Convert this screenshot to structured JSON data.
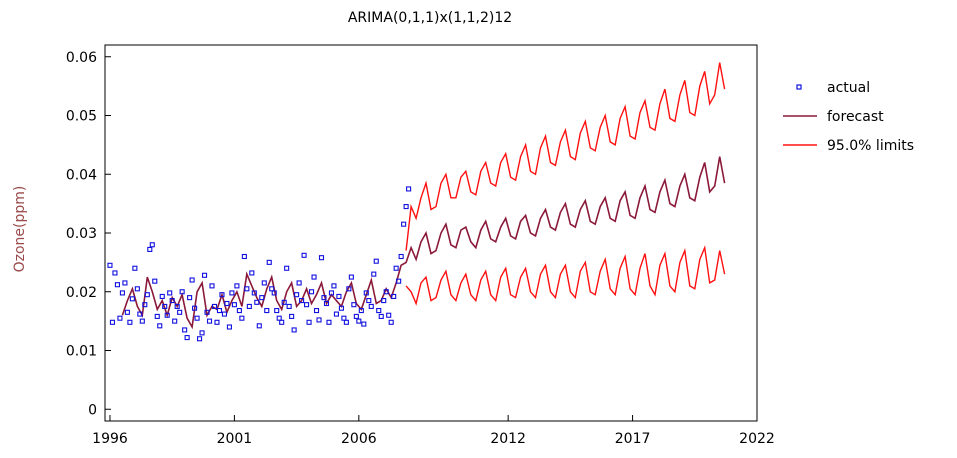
{
  "chart_data": {
    "type": "line",
    "title": "ARIMA(0,1,1)x(1,1,2)12",
    "xlabel": "",
    "ylabel": "Ozone(ppm)",
    "xlim": [
      1995.8,
      2022
    ],
    "ylim": [
      -0.002,
      0.062
    ],
    "xticks": [
      1996,
      2001,
      2006,
      2012,
      2017,
      2022
    ],
    "yticks": [
      0,
      0.01,
      0.02,
      0.03,
      0.04,
      0.05,
      0.06
    ],
    "ytick_labels": [
      "0",
      "0.01",
      "0.02",
      "0.03",
      "0.04",
      "0.05",
      "0.06"
    ],
    "grid": false,
    "legend_position": "right",
    "colors": {
      "actual": "#1010e0",
      "forecast": "#8b1a3a",
      "limits": "#ff1010"
    },
    "series": [
      {
        "name": "actual",
        "marker": "square",
        "x": [
          1996.0,
          1996.1,
          1996.2,
          1996.3,
          1996.4,
          1996.5,
          1996.6,
          1996.7,
          1996.8,
          1996.9,
          1997.0,
          1997.1,
          1997.2,
          1997.3,
          1997.4,
          1997.5,
          1997.6,
          1997.7,
          1997.8,
          1997.9,
          1998.0,
          1998.1,
          1998.2,
          1998.3,
          1998.4,
          1998.5,
          1998.6,
          1998.7,
          1998.8,
          1998.9,
          1999.0,
          1999.1,
          1999.2,
          1999.3,
          1999.4,
          1999.5,
          1999.6,
          1999.7,
          1999.8,
          1999.9,
          2000.0,
          2000.1,
          2000.2,
          2000.3,
          2000.4,
          2000.5,
          2000.6,
          2000.7,
          2000.8,
          2000.9,
          2001.0,
          2001.1,
          2001.2,
          2001.3,
          2001.4,
          2001.5,
          2001.6,
          2001.7,
          2001.8,
          2001.9,
          2002.0,
          2002.1,
          2002.2,
          2002.3,
          2002.4,
          2002.5,
          2002.6,
          2002.7,
          2002.8,
          2002.9,
          2003.0,
          2003.1,
          2003.2,
          2003.3,
          2003.4,
          2003.5,
          2003.6,
          2003.7,
          2003.8,
          2003.9,
          2004.0,
          2004.1,
          2004.2,
          2004.3,
          2004.4,
          2004.5,
          2004.6,
          2004.7,
          2004.8,
          2004.9,
          2005.0,
          2005.1,
          2005.2,
          2005.3,
          2005.4,
          2005.5,
          2005.6,
          2005.7,
          2005.8,
          2005.9,
          2006.0,
          2006.1,
          2006.2,
          2006.3,
          2006.4,
          2006.5,
          2006.6,
          2006.7,
          2006.8,
          2006.9,
          2007.0,
          2007.1,
          2007.2,
          2007.3,
          2007.4,
          2007.5,
          2007.6,
          2007.7,
          2007.8,
          2007.9,
          2008.0
        ],
        "y": [
          0.0245,
          0.0148,
          0.0232,
          0.0212,
          0.0155,
          0.0198,
          0.0215,
          0.0165,
          0.0148,
          0.0188,
          0.024,
          0.0205,
          0.0162,
          0.015,
          0.0178,
          0.0195,
          0.0272,
          0.028,
          0.0218,
          0.0158,
          0.0142,
          0.0192,
          0.0175,
          0.016,
          0.0198,
          0.0185,
          0.015,
          0.0175,
          0.0165,
          0.02,
          0.0135,
          0.0122,
          0.019,
          0.022,
          0.0172,
          0.0155,
          0.012,
          0.013,
          0.0228,
          0.0165,
          0.015,
          0.021,
          0.0175,
          0.0148,
          0.0168,
          0.0195,
          0.0162,
          0.018,
          0.014,
          0.0198,
          0.0178,
          0.021,
          0.0168,
          0.0155,
          0.026,
          0.0205,
          0.0175,
          0.0232,
          0.0198,
          0.0182,
          0.0142,
          0.019,
          0.0215,
          0.0168,
          0.025,
          0.0205,
          0.0198,
          0.0168,
          0.0155,
          0.0148,
          0.0182,
          0.024,
          0.0175,
          0.0158,
          0.0135,
          0.0195,
          0.0215,
          0.0185,
          0.0262,
          0.0178,
          0.0148,
          0.02,
          0.0225,
          0.0168,
          0.0152,
          0.0258,
          0.019,
          0.018,
          0.0148,
          0.0198,
          0.021,
          0.0162,
          0.0192,
          0.0172,
          0.0155,
          0.0148,
          0.0205,
          0.0225,
          0.0178,
          0.0158,
          0.015,
          0.0168,
          0.0145,
          0.0198,
          0.0185,
          0.0175,
          0.023,
          0.0252,
          0.0168,
          0.0158,
          0.0185,
          0.02,
          0.016,
          0.0148,
          0.0192,
          0.024,
          0.0218,
          0.026,
          0.0315,
          0.0345,
          0.0375
        ]
      },
      {
        "name": "forecast",
        "x": [
          1996.5,
          1996.7,
          1996.9,
          1997.1,
          1997.3,
          1997.5,
          1997.7,
          1997.9,
          1998.1,
          1998.3,
          1998.5,
          1998.7,
          1998.9,
          1999.1,
          1999.3,
          1999.5,
          1999.7,
          1999.9,
          2000.1,
          2000.3,
          2000.5,
          2000.7,
          2000.9,
          2001.1,
          2001.3,
          2001.5,
          2001.7,
          2001.9,
          2002.1,
          2002.3,
          2002.5,
          2002.7,
          2002.9,
          2003.1,
          2003.3,
          2003.5,
          2003.7,
          2003.9,
          2004.1,
          2004.3,
          2004.5,
          2004.7,
          2004.9,
          2005.1,
          2005.3,
          2005.5,
          2005.7,
          2005.9,
          2006.1,
          2006.3,
          2006.5,
          2006.7,
          2006.9,
          2007.1,
          2007.3,
          2007.5,
          2007.7,
          2007.9,
          2008.1,
          2008.3,
          2008.5,
          2008.7,
          2008.9,
          2009.1,
          2009.3,
          2009.5,
          2009.7,
          2009.9,
          2010.1,
          2010.3,
          2010.5,
          2010.7,
          2010.9,
          2011.1,
          2011.3,
          2011.5,
          2011.7,
          2011.9,
          2012.1,
          2012.3,
          2012.5,
          2012.7,
          2012.9,
          2013.1,
          2013.3,
          2013.5,
          2013.7,
          2013.9,
          2014.1,
          2014.3,
          2014.5,
          2014.7,
          2014.9,
          2015.1,
          2015.3,
          2015.5,
          2015.7,
          2015.9,
          2016.1,
          2016.3,
          2016.5,
          2016.7,
          2016.9,
          2017.1,
          2017.3,
          2017.5,
          2017.7,
          2017.9,
          2018.1,
          2018.3,
          2018.5,
          2018.7,
          2018.9,
          2019.1,
          2019.3,
          2019.5,
          2019.7,
          2019.9,
          2020.1,
          2020.3,
          2020.5,
          2020.7
        ],
        "y": [
          0.016,
          0.0185,
          0.0205,
          0.0175,
          0.016,
          0.0225,
          0.02,
          0.017,
          0.0185,
          0.016,
          0.019,
          0.0175,
          0.0195,
          0.0155,
          0.014,
          0.02,
          0.0215,
          0.016,
          0.0175,
          0.017,
          0.0195,
          0.0165,
          0.0185,
          0.02,
          0.0175,
          0.023,
          0.021,
          0.019,
          0.0175,
          0.0205,
          0.0225,
          0.0185,
          0.017,
          0.02,
          0.0215,
          0.0175,
          0.0185,
          0.0205,
          0.018,
          0.0195,
          0.0215,
          0.018,
          0.0195,
          0.0185,
          0.0175,
          0.02,
          0.0215,
          0.018,
          0.017,
          0.0195,
          0.022,
          0.018,
          0.0185,
          0.0205,
          0.019,
          0.0215,
          0.0245,
          0.025,
          0.0275,
          0.0255,
          0.0285,
          0.03,
          0.0265,
          0.027,
          0.03,
          0.0315,
          0.028,
          0.0275,
          0.0305,
          0.031,
          0.0285,
          0.0275,
          0.0305,
          0.032,
          0.029,
          0.0285,
          0.031,
          0.0325,
          0.0295,
          0.029,
          0.032,
          0.033,
          0.03,
          0.0295,
          0.0325,
          0.034,
          0.031,
          0.0305,
          0.0335,
          0.035,
          0.0315,
          0.031,
          0.034,
          0.0355,
          0.032,
          0.0315,
          0.0345,
          0.036,
          0.0325,
          0.032,
          0.0355,
          0.037,
          0.033,
          0.0325,
          0.036,
          0.038,
          0.034,
          0.0335,
          0.037,
          0.039,
          0.035,
          0.0345,
          0.038,
          0.04,
          0.036,
          0.0355,
          0.0395,
          0.042,
          0.037,
          0.038,
          0.043,
          0.0385
        ]
      },
      {
        "name": "95.0% limits",
        "x": [
          2007.9,
          2008.1,
          2008.3,
          2008.5,
          2008.7,
          2008.9,
          2009.1,
          2009.3,
          2009.5,
          2009.7,
          2009.9,
          2010.1,
          2010.3,
          2010.5,
          2010.7,
          2010.9,
          2011.1,
          2011.3,
          2011.5,
          2011.7,
          2011.9,
          2012.1,
          2012.3,
          2012.5,
          2012.7,
          2012.9,
          2013.1,
          2013.3,
          2013.5,
          2013.7,
          2013.9,
          2014.1,
          2014.3,
          2014.5,
          2014.7,
          2014.9,
          2015.1,
          2015.3,
          2015.5,
          2015.7,
          2015.9,
          2016.1,
          2016.3,
          2016.5,
          2016.7,
          2016.9,
          2017.1,
          2017.3,
          2017.5,
          2017.7,
          2017.9,
          2018.1,
          2018.3,
          2018.5,
          2018.7,
          2018.9,
          2019.1,
          2019.3,
          2019.5,
          2019.7,
          2019.9,
          2020.1,
          2020.3,
          2020.5,
          2020.7
        ],
        "y": [
          0.027,
          0.0345,
          0.0325,
          0.036,
          0.0385,
          0.034,
          0.0345,
          0.0385,
          0.04,
          0.036,
          0.036,
          0.0395,
          0.0405,
          0.037,
          0.0365,
          0.0405,
          0.042,
          0.0385,
          0.038,
          0.042,
          0.0435,
          0.0395,
          0.039,
          0.043,
          0.045,
          0.0405,
          0.04,
          0.0445,
          0.0465,
          0.042,
          0.0415,
          0.0455,
          0.0475,
          0.043,
          0.0425,
          0.047,
          0.049,
          0.0445,
          0.044,
          0.048,
          0.05,
          0.0455,
          0.045,
          0.0495,
          0.0515,
          0.0465,
          0.046,
          0.0505,
          0.0525,
          0.048,
          0.0475,
          0.052,
          0.0545,
          0.0495,
          0.049,
          0.0535,
          0.056,
          0.0505,
          0.05,
          0.055,
          0.0575,
          0.052,
          0.0535,
          0.059,
          0.0545
        ]
      },
      {
        "name": "",
        "x": [
          2007.9,
          2008.1,
          2008.3,
          2008.5,
          2008.7,
          2008.9,
          2009.1,
          2009.3,
          2009.5,
          2009.7,
          2009.9,
          2010.1,
          2010.3,
          2010.5,
          2010.7,
          2010.9,
          2011.1,
          2011.3,
          2011.5,
          2011.7,
          2011.9,
          2012.1,
          2012.3,
          2012.5,
          2012.7,
          2012.9,
          2013.1,
          2013.3,
          2013.5,
          2013.7,
          2013.9,
          2014.1,
          2014.3,
          2014.5,
          2014.7,
          2014.9,
          2015.1,
          2015.3,
          2015.5,
          2015.7,
          2015.9,
          2016.1,
          2016.3,
          2016.5,
          2016.7,
          2016.9,
          2017.1,
          2017.3,
          2017.5,
          2017.7,
          2017.9,
          2018.1,
          2018.3,
          2018.5,
          2018.7,
          2018.9,
          2019.1,
          2019.3,
          2019.5,
          2019.7,
          2019.9,
          2020.1,
          2020.3,
          2020.5,
          2020.7
        ],
        "y": [
          0.021,
          0.02,
          0.018,
          0.0215,
          0.0225,
          0.0185,
          0.019,
          0.022,
          0.0235,
          0.0195,
          0.0185,
          0.0215,
          0.023,
          0.0195,
          0.0185,
          0.022,
          0.0235,
          0.0195,
          0.0185,
          0.0225,
          0.024,
          0.0195,
          0.019,
          0.0225,
          0.024,
          0.02,
          0.019,
          0.023,
          0.0245,
          0.02,
          0.019,
          0.023,
          0.0245,
          0.02,
          0.019,
          0.0235,
          0.025,
          0.02,
          0.0195,
          0.0235,
          0.0255,
          0.0205,
          0.0195,
          0.024,
          0.026,
          0.0205,
          0.0195,
          0.024,
          0.0265,
          0.021,
          0.0195,
          0.0245,
          0.0265,
          0.021,
          0.02,
          0.025,
          0.027,
          0.021,
          0.0205,
          0.0255,
          0.0275,
          0.0215,
          0.022,
          0.027,
          0.023
        ]
      }
    ],
    "legend": [
      {
        "label": "actual",
        "kind": "marker",
        "color": "#1010e0"
      },
      {
        "label": "forecast",
        "kind": "line",
        "color": "#8b1a3a"
      },
      {
        "label": "95.0% limits",
        "kind": "line",
        "color": "#ff1010"
      }
    ]
  }
}
